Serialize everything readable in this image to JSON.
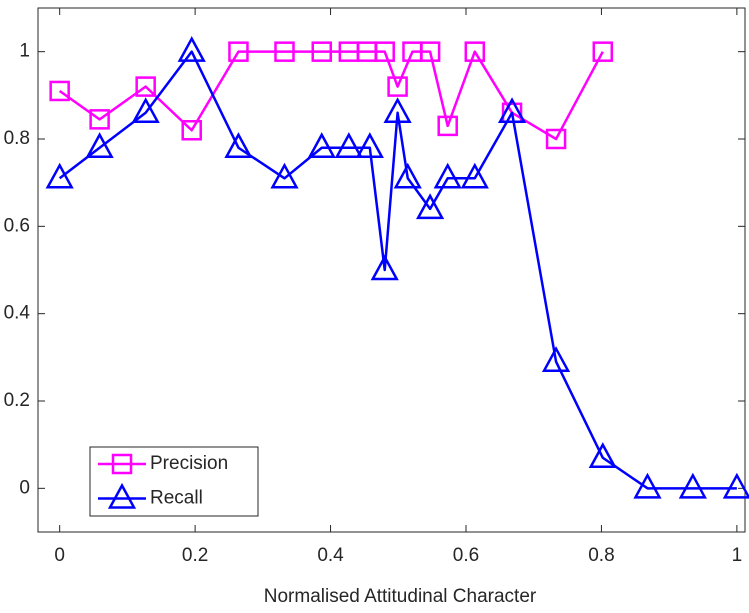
{
  "chart_data": {
    "type": "line",
    "xlabel": "Normalised Attitudinal Character",
    "xlim": [
      -0.032,
      1.012
    ],
    "ylim": [
      -0.1,
      1.1
    ],
    "xticks": [
      0,
      0.2,
      0.4,
      0.6,
      0.8,
      1
    ],
    "yticks": [
      0,
      0.2,
      0.4,
      0.6,
      0.8,
      1
    ],
    "grid": false,
    "legend": "lower left",
    "series": [
      {
        "name": "Precision",
        "color": "#ff00ff",
        "marker": "square",
        "x": [
          0,
          0.059,
          0.127,
          0.195,
          0.264,
          0.332,
          0.387,
          0.427,
          0.454,
          0.48,
          0.499,
          0.521,
          0.547,
          0.573,
          0.613,
          0.668,
          0.733,
          0.802
        ],
        "values": [
          0.91,
          0.845,
          0.92,
          0.82,
          1,
          1,
          1,
          1,
          1,
          1,
          0.92,
          1,
          1,
          0.83,
          1,
          0.86,
          0.8,
          1
        ]
      },
      {
        "name": "Recall",
        "color": "#0000ff",
        "marker": "triangle",
        "x": [
          0,
          0.059,
          0.127,
          0.195,
          0.264,
          0.332,
          0.387,
          0.427,
          0.458,
          0.48,
          0.499,
          0.514,
          0.547,
          0.573,
          0.613,
          0.668,
          0.733,
          0.802,
          0.868,
          0.935,
          1
        ],
        "values": [
          0.71,
          0.78,
          0.86,
          1.0,
          0.78,
          0.71,
          0.78,
          0.78,
          0.78,
          0.5,
          0.86,
          0.71,
          0.64,
          0.71,
          0.71,
          0.86,
          0.29,
          0.07,
          0,
          0,
          0
        ]
      }
    ]
  }
}
